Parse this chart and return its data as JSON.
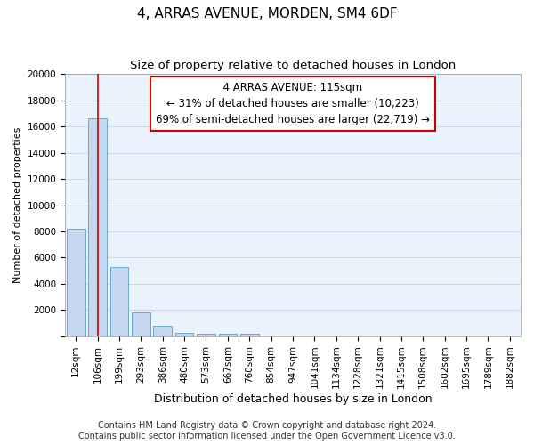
{
  "title": "4, ARRAS AVENUE, MORDEN, SM4 6DF",
  "subtitle": "Size of property relative to detached houses in London",
  "xlabel": "Distribution of detached houses by size in London",
  "ylabel": "Number of detached properties",
  "categories": [
    "12sqm",
    "106sqm",
    "199sqm",
    "293sqm",
    "386sqm",
    "480sqm",
    "573sqm",
    "667sqm",
    "760sqm",
    "854sqm",
    "947sqm",
    "1041sqm",
    "1134sqm",
    "1228sqm",
    "1321sqm",
    "1415sqm",
    "1508sqm",
    "1602sqm",
    "1695sqm",
    "1789sqm",
    "1882sqm"
  ],
  "values": [
    8200,
    16600,
    5300,
    1800,
    800,
    300,
    200,
    200,
    200,
    0,
    0,
    0,
    0,
    0,
    0,
    0,
    0,
    0,
    0,
    0,
    0
  ],
  "bar_color": "#c5d8ef",
  "bar_edge_color": "#6aaad4",
  "grid_color": "#c8d8e8",
  "background_color": "#eaf2fb",
  "vline_x": 1.0,
  "vline_color": "#cc0000",
  "annotation_text": "  4 ARRAS AVENUE: 115sqm  \n← 31% of detached houses are smaller (10,223)\n69% of semi-detached houses are larger (22,719) →",
  "annotation_box_color": "#ffffff",
  "annotation_box_edge": "#cc0000",
  "ylim": [
    0,
    20000
  ],
  "yticks": [
    0,
    2000,
    4000,
    6000,
    8000,
    10000,
    12000,
    14000,
    16000,
    18000,
    20000
  ],
  "footer_line1": "Contains HM Land Registry data © Crown copyright and database right 2024.",
  "footer_line2": "Contains public sector information licensed under the Open Government Licence v3.0.",
  "title_fontsize": 11,
  "subtitle_fontsize": 9.5,
  "xlabel_fontsize": 9,
  "ylabel_fontsize": 8,
  "tick_fontsize": 7.5,
  "annotation_fontsize": 8.5,
  "footer_fontsize": 7
}
